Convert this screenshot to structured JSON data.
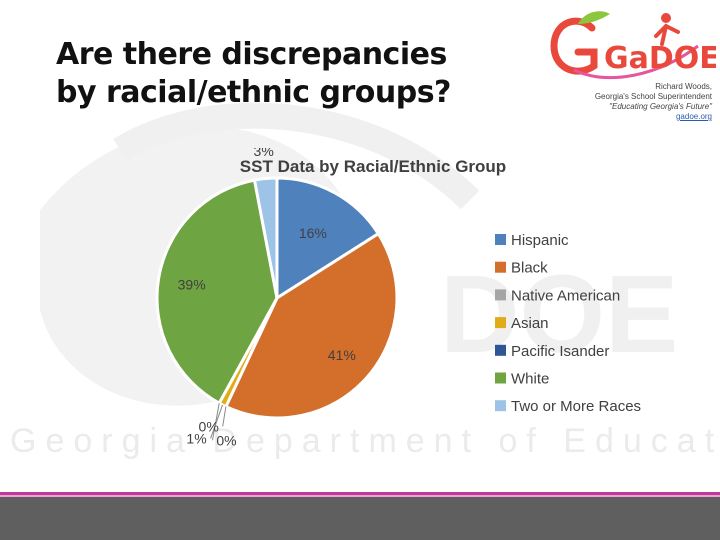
{
  "slide": {
    "title_line1": "Are there discrepancies",
    "title_line2": "by racial/ethnic groups?"
  },
  "header": {
    "logo_text": "GaDOE",
    "name": "Richard Woods,",
    "role": "Georgia's School Superintendent",
    "motto": "\"Educating Georgia's Future\"",
    "url": "gadoe.org"
  },
  "watermark": {
    "text": "Georgia Department of Education"
  },
  "colors": {
    "hispanic": "#4f81bd",
    "black": "#d46e2b",
    "native_american": "#a5a5a5",
    "asian": "#e0ac17",
    "pacific_islander": "#2f5597",
    "white": "#6fa442",
    "two_or_more": "#9dc3e6",
    "footer_accent": "#c0399a",
    "footer_bar": "#5f5f5f"
  },
  "chart_data": {
    "type": "pie",
    "title": "SST Data by Racial/Ethnic Group",
    "categories": [
      "Hispanic",
      "Black",
      "Native American",
      "Asian",
      "Pacific Isander",
      "White",
      "Two or More Races"
    ],
    "values": [
      16,
      41,
      0,
      1,
      0,
      39,
      3
    ],
    "labels": [
      "16%",
      "41%",
      "0%",
      "1%",
      "0%",
      "39%",
      "3%"
    ],
    "legend_position": "right",
    "grid": false
  }
}
